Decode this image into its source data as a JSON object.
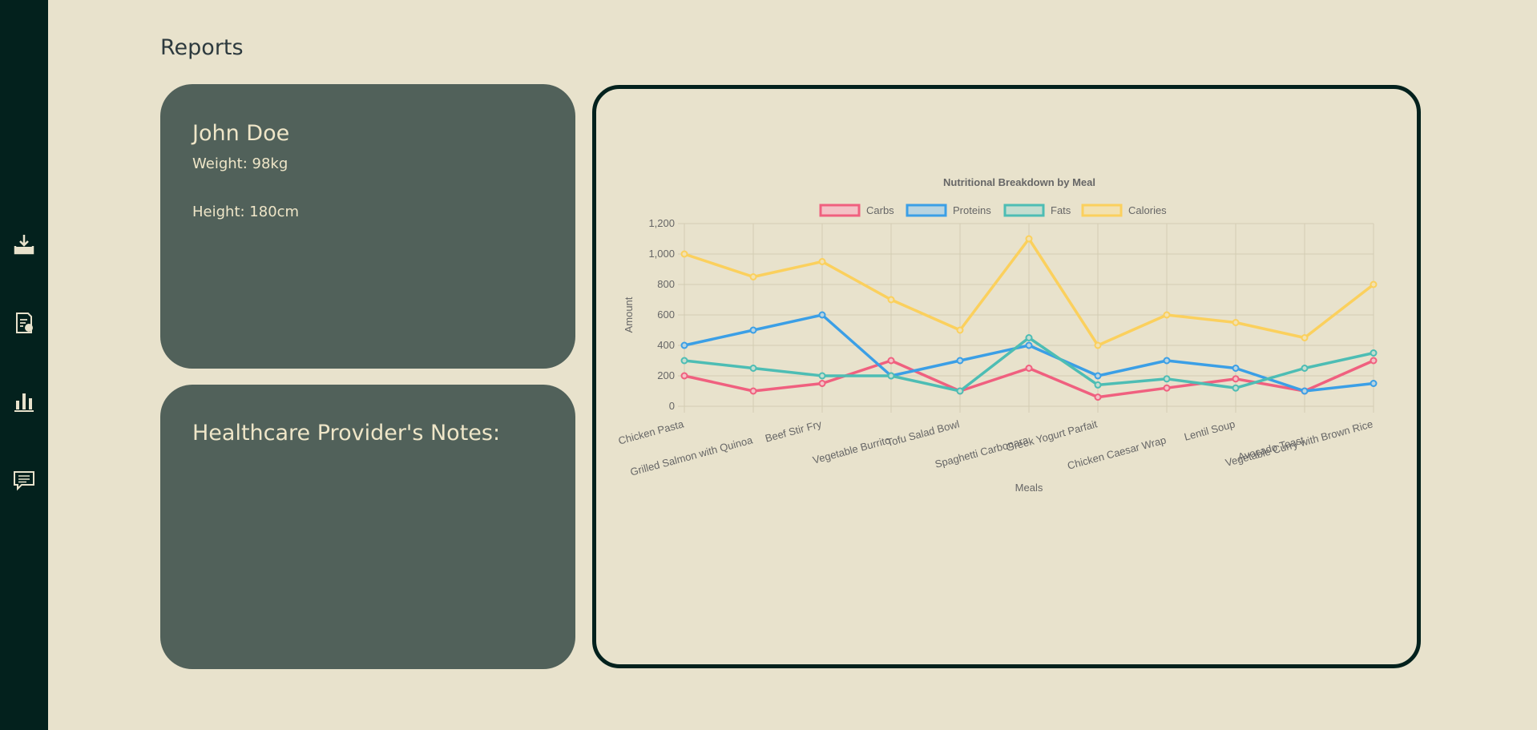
{
  "sidebar": {
    "items": [
      {
        "name": "inbox-download-icon"
      },
      {
        "name": "report-document-icon"
      },
      {
        "name": "bar-chart-icon"
      },
      {
        "name": "message-icon"
      }
    ]
  },
  "page": {
    "title": "Reports"
  },
  "profile": {
    "name": "John Doe",
    "weight": "Weight: 98kg",
    "height": "Height: 180cm"
  },
  "notes": {
    "title": "Healthcare Provider's Notes:"
  },
  "chart_data": {
    "type": "line",
    "title": "Nutritional Breakdown by Meal",
    "xlabel": "Meals",
    "ylabel": "Amount",
    "ylim": [
      0,
      1200
    ],
    "yticks": [
      "0",
      "200",
      "400",
      "600",
      "800",
      "1,000",
      "1,200"
    ],
    "grid": true,
    "legend_position": "top",
    "categories": [
      "Chicken Pasta",
      "Grilled Salmon with Quinoa",
      "Beef Stir Fry",
      "Vegetable Burrito",
      "Tofu Salad Bowl",
      "Spaghetti Carbonara",
      "Greek Yogurt Parfait",
      "Chicken Caesar Wrap",
      "Lentil Soup",
      "Avocado Toast",
      "Vegetable Curry with Brown Rice"
    ],
    "series": [
      {
        "name": "Carbs",
        "color": "#f0607f",
        "fill": "#f3c2c6",
        "values": [
          200,
          100,
          150,
          300,
          100,
          250,
          60,
          120,
          180,
          100,
          300
        ]
      },
      {
        "name": "Proteins",
        "color": "#3b9fe6",
        "fill": "#b9d4e0",
        "values": [
          400,
          500,
          600,
          200,
          300,
          400,
          200,
          300,
          250,
          100,
          150
        ]
      },
      {
        "name": "Fats",
        "color": "#4dbdb4",
        "fill": "#c5ddcf",
        "values": [
          300,
          250,
          200,
          200,
          100,
          450,
          140,
          180,
          120,
          250,
          350
        ]
      },
      {
        "name": "Calories",
        "color": "#fbd05d",
        "fill": "#f2e1b0",
        "values": [
          1000,
          850,
          950,
          700,
          500,
          1100,
          400,
          600,
          550,
          450,
          800
        ]
      }
    ]
  }
}
